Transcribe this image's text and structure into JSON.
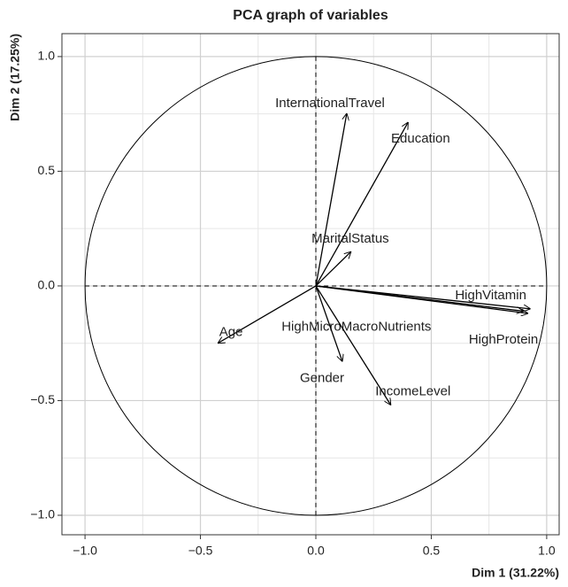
{
  "chart_data": {
    "type": "biplot",
    "title": "PCA graph of variables",
    "xlabel": "Dim 1 (31.22%)",
    "ylabel": "Dim 2 (17.25%)",
    "xlim": [
      -1.1,
      1.054
    ],
    "ylim": [
      -1.085,
      1.1
    ],
    "xticks": [
      {
        "value": -1,
        "label": "−1.0"
      },
      {
        "value": -0.5,
        "label": "−0.5"
      },
      {
        "value": 0,
        "label": "0.0"
      },
      {
        "value": 0.5,
        "label": "0.5"
      },
      {
        "value": 1,
        "label": "1.0"
      }
    ],
    "yticks": [
      {
        "value": -1,
        "label": "−1.0"
      },
      {
        "value": -0.5,
        "label": "−0.5"
      },
      {
        "value": 0,
        "label": "0.0"
      },
      {
        "value": 0.5,
        "label": "0.5"
      },
      {
        "value": 1,
        "label": "1.0"
      }
    ],
    "grid": true,
    "color": "#000000",
    "variables": [
      {
        "name": "InternationalTravel",
        "x": 0.134,
        "y": 0.753
      },
      {
        "name": "Education",
        "x": 0.4,
        "y": 0.714
      },
      {
        "name": "MaritalStatus",
        "x": 0.153,
        "y": 0.15
      },
      {
        "name": "HighVitamin",
        "x": 0.93,
        "y": -0.1
      },
      {
        "name": "HighMicroMacroNutrients",
        "x": 0.9,
        "y": -0.11
      },
      {
        "name": "HighProtein",
        "x": 0.92,
        "y": -0.12
      },
      {
        "name": "Age",
        "x": -0.425,
        "y": -0.25
      },
      {
        "name": "Gender",
        "x": 0.115,
        "y": -0.33
      },
      {
        "name": "IncomeLevel",
        "x": 0.325,
        "y": -0.52
      }
    ]
  }
}
